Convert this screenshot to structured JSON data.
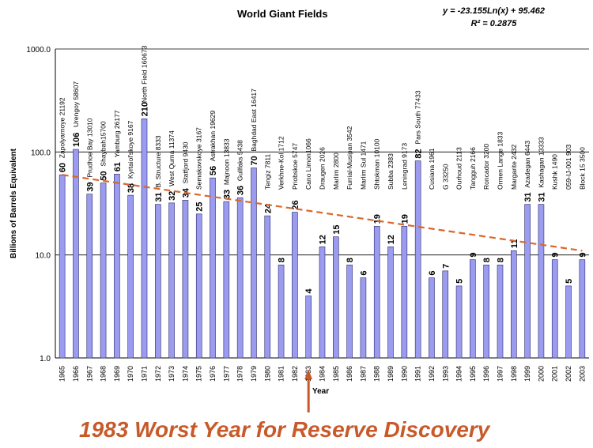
{
  "chart_data": {
    "type": "bar",
    "title": "World Giant Fields",
    "ylabel": "Billions of Barrels Equivalent",
    "xlabel": "Year",
    "yscale": "log",
    "ylim": [
      1,
      1000
    ],
    "yticks": [
      "1.0",
      "10.0",
      "100.0",
      "1000.0"
    ],
    "bar_color": "#9b9bf0",
    "trend_color": "#d9682c",
    "trendline": {
      "equation": "y = -23.155Ln(x) + 95.462",
      "r2": "R² = 0.2875",
      "start": 60,
      "end": 11
    },
    "categories": [
      "1965",
      "1966",
      "1967",
      "1968",
      "1969",
      "1970",
      "1971",
      "1972",
      "1973",
      "1974",
      "1975",
      "1976",
      "1977",
      "1978",
      "1979",
      "1980",
      "1981",
      "1982",
      "1983",
      "1984",
      "1985",
      "1986",
      "1987",
      "1988",
      "1989",
      "1990",
      "1991",
      "1992",
      "1993",
      "1994",
      "1995",
      "1996",
      "1997",
      "1998",
      "1999",
      "2000",
      "2001",
      "2002",
      "2003"
    ],
    "values": [
      60,
      106,
      39,
      50,
      61,
      38,
      210,
      31,
      32,
      34,
      25,
      56,
      33,
      36,
      70,
      24,
      8,
      26,
      4,
      12,
      15,
      8,
      6,
      19,
      12,
      19,
      82,
      6,
      7,
      5,
      9,
      8,
      8,
      11,
      31,
      31,
      9,
      5,
      9
    ],
    "data_labels": [
      "60",
      "106",
      "39",
      "50",
      "61",
      "38",
      "210",
      "31",
      "32",
      "34",
      "25",
      "56",
      "33",
      "36",
      "70",
      "24",
      "8",
      "26",
      "4",
      "12",
      "15",
      "8",
      "6",
      "19",
      "12",
      "19",
      "82",
      "6",
      "7",
      "5",
      "9",
      "8",
      "8",
      "11",
      "31",
      "31",
      "9",
      "5",
      "9"
    ],
    "field_labels": [
      "Zapolyarnoye 21192",
      "Urengoy 58607",
      "Prudhoe Bay 13010",
      "Shaybah15700",
      "Yamburg 26177",
      "Kyrtaiol'skoye 9167",
      "North Field 160673",
      "B. Structure 8333",
      "West Qurna 11374",
      "Statfjord 9430",
      "Semakovskoye 3167",
      "Astrakhan 19629",
      "Majnoon 13833",
      "Gullfaks 5438",
      "Baghdad East 16417",
      "Tengiz 7811",
      "Verkhne-Kol 1712",
      "Priobskoe 5747",
      "Cano Limon1066",
      "Draugen 2026",
      "Marlim 2800",
      "Furrial-Musipan 3542",
      "Marlim Sul 1471",
      "Shtokman 10100",
      "Subba 2383",
      "Leningrad 9173",
      "Pars South 77433",
      "Cusiana 1961",
      "G 33250",
      "Ourhoud 2113",
      "Tangguh 2166",
      "Roncador 3200",
      "Ormen Lange 1833",
      "Margarite 2432",
      "Azadegan 6443",
      "Kashagan 13333",
      "Kushk 1490",
      "059-IJ-001 903",
      "Block 15 3500"
    ]
  },
  "annotation": {
    "text": "1983 Worst Year for Reserve Discovery",
    "year": "1983",
    "color": "#c85a2a"
  }
}
